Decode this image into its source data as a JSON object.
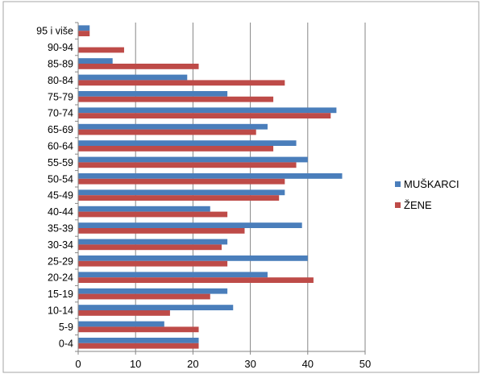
{
  "chart_data": {
    "type": "bar",
    "orientation": "horizontal",
    "title": "",
    "xlabel": "",
    "ylabel": "",
    "xlim": [
      0,
      50
    ],
    "x_ticks": [
      "0",
      "10",
      "20",
      "30",
      "40",
      "50"
    ],
    "grid": true,
    "legend_position": "right",
    "categories": [
      "95 i više",
      "90-94",
      "85-89",
      "80-84",
      "75-79",
      "70-74",
      "65-69",
      "60-64",
      "55-59",
      "50-54",
      "45-49",
      "40-44",
      "35-39",
      "30-34",
      "25-29",
      "20-24",
      "15-19",
      "10-14",
      "5-9",
      "0-4"
    ],
    "series": [
      {
        "name": "MUŠKARCI",
        "color": "#4a7ebb",
        "values": [
          2,
          0,
          6,
          19,
          26,
          45,
          33,
          38,
          40,
          46,
          36,
          23,
          39,
          26,
          40,
          33,
          26,
          27,
          15,
          21
        ]
      },
      {
        "name": "ŽENE",
        "color": "#be4b48",
        "values": [
          2,
          8,
          21,
          36,
          34,
          44,
          31,
          34,
          38,
          36,
          35,
          26,
          29,
          25,
          26,
          41,
          23,
          16,
          21,
          21
        ]
      }
    ]
  }
}
